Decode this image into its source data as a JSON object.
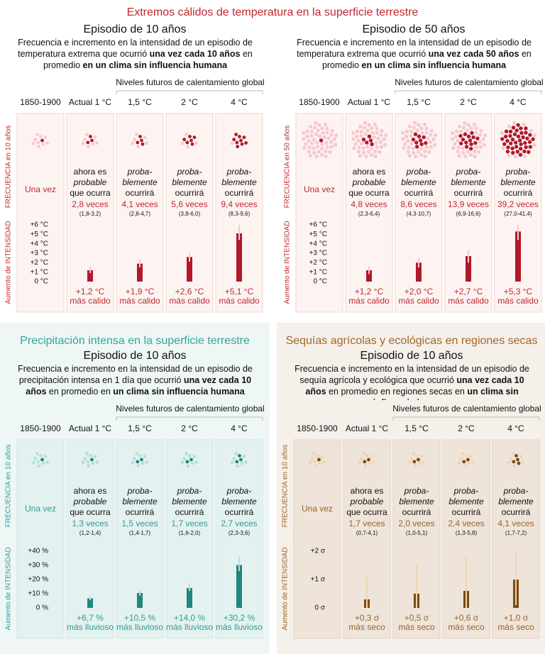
{
  "heat": {
    "title": "Extremos cálidos de temperatura en la superficie terrestre",
    "colors": {
      "accent": "#c0272d",
      "dark": "#b2182b",
      "light": "#f6c9d2",
      "title": "#c0272d",
      "bg": "#ffffff",
      "box": "#fdf4f2",
      "boxline": "#f3d3cc"
    },
    "panels": [
      {
        "episode": "Episodio de 10 años",
        "description": [
          {
            "text": "Frecuencia e incremento en la intensidad de un episodio de temperatura extrema que ocurrió ",
            "bold": false
          },
          {
            "text": "una vez cada 10 años",
            "bold": true
          },
          {
            "text": " en promedio ",
            "bold": false
          },
          {
            "text": "en un clima sin influencia humana",
            "bold": true
          }
        ],
        "future_label": "Niveles futuros de calentamiento global",
        "columns": [
          "1850-1900",
          "Actual 1 °C",
          "1,5 °C",
          "2 °C",
          "4 °C"
        ],
        "frequency_axis": "FRECUENCIA en 10 años",
        "baseline": "Una vez",
        "dots_total": 10,
        "dots": [
          1,
          3,
          4,
          6,
          9
        ],
        "likelihood": [
          [
            {
              "text": "ahora es",
              "italic": false
            },
            {
              "text": "probable",
              "italic": true
            },
            {
              "text": "que ocurra",
              "italic": false
            }
          ],
          [
            {
              "text": "proba-",
              "italic": true
            },
            {
              "text": "blemente",
              "italic": true
            },
            {
              "text": "ocurrirá",
              "italic": false
            }
          ],
          [
            {
              "text": "proba-",
              "italic": true
            },
            {
              "text": "blemente",
              "italic": true
            },
            {
              "text": "ocurrirá",
              "italic": false
            }
          ],
          [
            {
              "text": "proba-",
              "italic": true
            },
            {
              "text": "blemente",
              "italic": true
            },
            {
              "text": "ocurrirá",
              "italic": false
            }
          ]
        ],
        "frequency_labels": [
          "2,8 veces",
          "4,1 veces",
          "5,6 veces",
          "9,4 veces"
        ],
        "ranges": [
          "(1,8-3,2)",
          "(2,8-4,7)",
          "(3,8-6,0)",
          "(8,3-9,6)"
        ],
        "intensity_axis": "Aumento de INTENSIDAD",
        "ylim": [
          0,
          6
        ],
        "yticks": [
          {
            "value": 6,
            "label": "+6 °C"
          },
          {
            "value": 5,
            "label": "+5 °C"
          },
          {
            "value": 4,
            "label": "+4 °C"
          },
          {
            "value": 3,
            "label": "+3 °C"
          },
          {
            "value": 2,
            "label": "+2 °C"
          },
          {
            "value": 1,
            "label": "+1 °C"
          },
          {
            "value": 0,
            "label": "0 °C"
          }
        ],
        "intensity": [
          1.2,
          1.9,
          2.6,
          5.1
        ],
        "intensity_low": [
          0.9,
          1.5,
          2.1,
          4.4
        ],
        "intensity_high": [
          1.6,
          2.4,
          3.1,
          6.0
        ],
        "intensity_labels": [
          "+1,2 °C",
          "+1,9 °C",
          "+2,6 °C",
          "+5,1 °C"
        ],
        "intensity_note": "más calido"
      },
      {
        "episode": "Episodio de 50 años",
        "description": [
          {
            "text": "Frecuencia e incremento en la intensidad de un episodio de temperatura extrema que ocurrió ",
            "bold": false
          },
          {
            "text": "una vez cada 50 años",
            "bold": true
          },
          {
            "text": " en promedio ",
            "bold": false
          },
          {
            "text": "en un clima sin influencia humana",
            "bold": true
          }
        ],
        "future_label": "Niveles futuros de calentamiento global",
        "columns": [
          "1850-1900",
          "Actual 1 °C",
          "1,5 °C",
          "2 °C",
          "4 °C"
        ],
        "frequency_axis": "FRECUENCIA en 50 años",
        "baseline": "Una vez",
        "dots_total": 50,
        "dots": [
          1,
          5,
          9,
          14,
          39
        ],
        "likelihood": [
          [
            {
              "text": "ahora es",
              "italic": false
            },
            {
              "text": "probable",
              "italic": true
            },
            {
              "text": "que ocurra",
              "italic": false
            }
          ],
          [
            {
              "text": "proba-",
              "italic": true
            },
            {
              "text": "blemente",
              "italic": true
            },
            {
              "text": "ocurrirá",
              "italic": false
            }
          ],
          [
            {
              "text": "proba-",
              "italic": true
            },
            {
              "text": "blemente",
              "italic": true
            },
            {
              "text": "ocurrirá",
              "italic": false
            }
          ],
          [
            {
              "text": "proba-",
              "italic": true
            },
            {
              "text": "blemente",
              "italic": true
            },
            {
              "text": "ocurrirá",
              "italic": false
            }
          ]
        ],
        "frequency_labels": [
          "4,8 veces",
          "8,6 veces",
          "13,9 veces",
          "39,2 veces"
        ],
        "ranges": [
          "(2,3-6,4)",
          "(4,3-10,7)",
          "(6,9-16,6)",
          "(27,0-41,4)"
        ],
        "intensity_axis": "Aumento de INTENSIDAD",
        "ylim": [
          0,
          6
        ],
        "yticks": [
          {
            "value": 6,
            "label": "+6 °C"
          },
          {
            "value": 5,
            "label": "+5 °C"
          },
          {
            "value": 4,
            "label": "+4 °C"
          },
          {
            "value": 3,
            "label": "+3 °C"
          },
          {
            "value": 2,
            "label": "+2 °C"
          },
          {
            "value": 1,
            "label": "+1 °C"
          },
          {
            "value": 0,
            "label": "0 °C"
          }
        ],
        "intensity": [
          1.2,
          2.0,
          2.7,
          5.3
        ],
        "intensity_low": [
          0.8,
          1.5,
          2.0,
          4.4
        ],
        "intensity_high": [
          1.6,
          2.5,
          3.3,
          6.0
        ],
        "intensity_labels": [
          "+1,2 °C",
          "+2,0 °C",
          "+2,7 °C",
          "+5,3 °C"
        ],
        "intensity_note": "más calido"
      }
    ]
  },
  "precip": {
    "title": "Precipitación intensa en la superficie terrestre",
    "colors": {
      "accent": "#2f9c94",
      "dark": "#23857d",
      "light": "#b6e0dc",
      "title": "#3aa39a",
      "bg": "#eef6f6",
      "box": "#e4f1f1",
      "boxline": "#d2e8e7"
    },
    "panel": {
      "episode": "Episodio de 10 años",
      "description": [
        {
          "text": "Frecuencia e incremento en la intensidad de un episodio de precipitación intensa en 1 día que ocurrió ",
          "bold": false
        },
        {
          "text": "una vez cada 10 años",
          "bold": true
        },
        {
          "text": " en promedio en ",
          "bold": false
        },
        {
          "text": "un clima sin influencia humana",
          "bold": true
        }
      ],
      "future_label": "Niveles futuros de calentamiento global",
      "columns": [
        "1850-1900",
        "Actual 1 °C",
        "1,5 °C",
        "2 °C",
        "4 °C"
      ],
      "frequency_axis": "FRECUENCIA en 10 años",
      "baseline": "Una vez",
      "dots_total": 10,
      "dots": [
        1,
        1,
        2,
        2,
        3
      ],
      "likelihood": [
        [
          {
            "text": "ahora es",
            "italic": false
          },
          {
            "text": "probable",
            "italic": true
          },
          {
            "text": "que ocurra",
            "italic": false
          }
        ],
        [
          {
            "text": "proba-",
            "italic": true
          },
          {
            "text": "blemente",
            "italic": true
          },
          {
            "text": "ocurrirá",
            "italic": false
          }
        ],
        [
          {
            "text": "proba-",
            "italic": true
          },
          {
            "text": "blemente",
            "italic": true
          },
          {
            "text": "ocurrirá",
            "italic": false
          }
        ],
        [
          {
            "text": "proba-",
            "italic": true
          },
          {
            "text": "blemente",
            "italic": true
          },
          {
            "text": "ocurrirá",
            "italic": false
          }
        ]
      ],
      "frequency_labels": [
        "1,3 veces",
        "1,5 veces",
        "1,7 veces",
        "2,7 veces"
      ],
      "ranges": [
        "(1,2-1,4)",
        "(1,4-1,7)",
        "(1,6-2,0)",
        "(2,3-3,6)"
      ],
      "intensity_axis": "Aumento de INTENSIDAD",
      "ylim": [
        0,
        40
      ],
      "yticks": [
        {
          "value": 40,
          "label": "+40 %"
        },
        {
          "value": 30,
          "label": "+30 %"
        },
        {
          "value": 20,
          "label": "+20 %"
        },
        {
          "value": 10,
          "label": "+10 %"
        },
        {
          "value": 0,
          "label": "0 %"
        }
      ],
      "intensity": [
        6.7,
        10.5,
        14.0,
        30.2
      ],
      "intensity_low": [
        5.5,
        8.5,
        12,
        26
      ],
      "intensity_high": [
        8,
        12.5,
        17,
        36
      ],
      "intensity_labels": [
        "+6,7 %",
        "+10,5 %",
        "+14,0 %",
        "+30,2 %"
      ],
      "intensity_note": "más lluvioso"
    }
  },
  "drought": {
    "title": "Sequías agrícolas y ecológicas en regiones secas",
    "colors": {
      "accent": "#9a6424",
      "dark": "#7a4a12",
      "light": "#edd6b3",
      "title": "#a0672a",
      "bg": "#f6f0ea",
      "box": "#efe4d9",
      "boxline": "#e3d3c3"
    },
    "panel": {
      "episode": "Episodio de 10 años",
      "description": [
        {
          "text": "Frecuencia e incremento en la intensidad de un episodio de sequía agrícola y ecológica que ocurrió ",
          "bold": false
        },
        {
          "text": "una vez cada 10 años",
          "bold": true
        },
        {
          "text": " en promedio en regiones secas en ",
          "bold": false
        },
        {
          "text": "un clima sin influencia humana",
          "bold": true
        }
      ],
      "future_label": "Niveles futuros de calentamiento global",
      "columns": [
        "1850-1900",
        "Actual 1 °C",
        "1,5 °C",
        "2 °C",
        "4 °C"
      ],
      "frequency_axis": "FRECUENCIA en 10 años",
      "baseline": "Una vez",
      "dots_total": 10,
      "dots": [
        1,
        2,
        2,
        2,
        4
      ],
      "likelihood": [
        [
          {
            "text": "ahora es",
            "italic": false
          },
          {
            "text": "probable",
            "italic": true
          },
          {
            "text": "que ocurra",
            "italic": false
          }
        ],
        [
          {
            "text": "proba-",
            "italic": true
          },
          {
            "text": "blemente",
            "italic": true
          },
          {
            "text": "ocurrirá",
            "italic": false
          }
        ],
        [
          {
            "text": "proba-",
            "italic": true
          },
          {
            "text": "blemente",
            "italic": true
          },
          {
            "text": "ocurrirá",
            "italic": false
          }
        ],
        [
          {
            "text": "proba-",
            "italic": true
          },
          {
            "text": "blemente",
            "italic": true
          },
          {
            "text": "ocurrirá",
            "italic": false
          }
        ]
      ],
      "frequency_labels": [
        "1,7 veces",
        "2,0 veces",
        "2,4 veces",
        "4,1 veces"
      ],
      "ranges": [
        "(0,7-4,1)",
        "(1,0-5,1)",
        "(1,3-5,8)",
        "(1,7-7,2)"
      ],
      "intensity_axis": "Aumento de INTENSIDAD",
      "ylim": [
        0,
        2
      ],
      "yticks": [
        {
          "value": 2,
          "label": "+2 σ"
        },
        {
          "value": 1,
          "label": "+1 σ"
        },
        {
          "value": 0,
          "label": "0 σ"
        }
      ],
      "intensity": [
        0.3,
        0.5,
        0.6,
        1.0
      ],
      "intensity_low": [
        0,
        0,
        0,
        0.1
      ],
      "intensity_high": [
        1.1,
        1.5,
        1.8,
        2.0
      ],
      "intensity_labels": [
        "+0,3 σ",
        "+0,5 σ",
        "+0,6 σ",
        "+1,0 σ"
      ],
      "intensity_note": "más seco"
    }
  }
}
